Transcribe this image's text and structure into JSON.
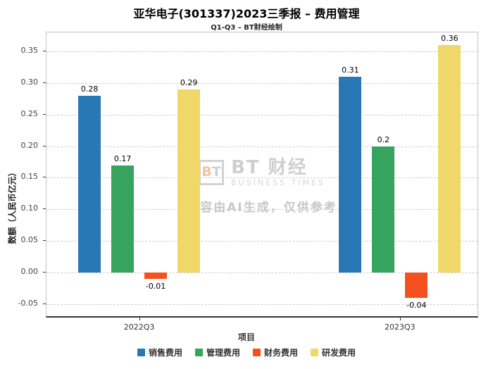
{
  "title": "亚华电子(301337)2023三季报 – 费用管理",
  "subtitle": "Q1-Q3 – BT财经绘制",
  "watermark": {
    "logo_b": "B",
    "logo_t": "T",
    "brand": "BT 财经",
    "brand_sub": "BUSINESS TIMES",
    "disclaimer": "内容由AI生成，仅供参考"
  },
  "chart_data": {
    "type": "bar",
    "categories": [
      "2022Q3",
      "2023Q3"
    ],
    "series": [
      {
        "name": "销售费用",
        "color": "#2878B5",
        "values": [
          0.28,
          0.31
        ]
      },
      {
        "name": "管理费用",
        "color": "#36A35E",
        "values": [
          0.17,
          0.2
        ]
      },
      {
        "name": "财务费用",
        "color": "#F4501E",
        "values": [
          -0.01,
          -0.04
        ]
      },
      {
        "name": "研发费用",
        "color": "#EFD76A",
        "values": [
          0.29,
          0.36
        ]
      }
    ],
    "xlabel": "项目",
    "ylabel": "数额（人民币亿元）",
    "ylim": [
      -0.07,
      0.38
    ],
    "yticks": [
      -0.05,
      0.0,
      0.05,
      0.1,
      0.15,
      0.2,
      0.25,
      0.3,
      0.35
    ],
    "grid": true,
    "legend_position": "bottom",
    "bar_labels": true
  }
}
